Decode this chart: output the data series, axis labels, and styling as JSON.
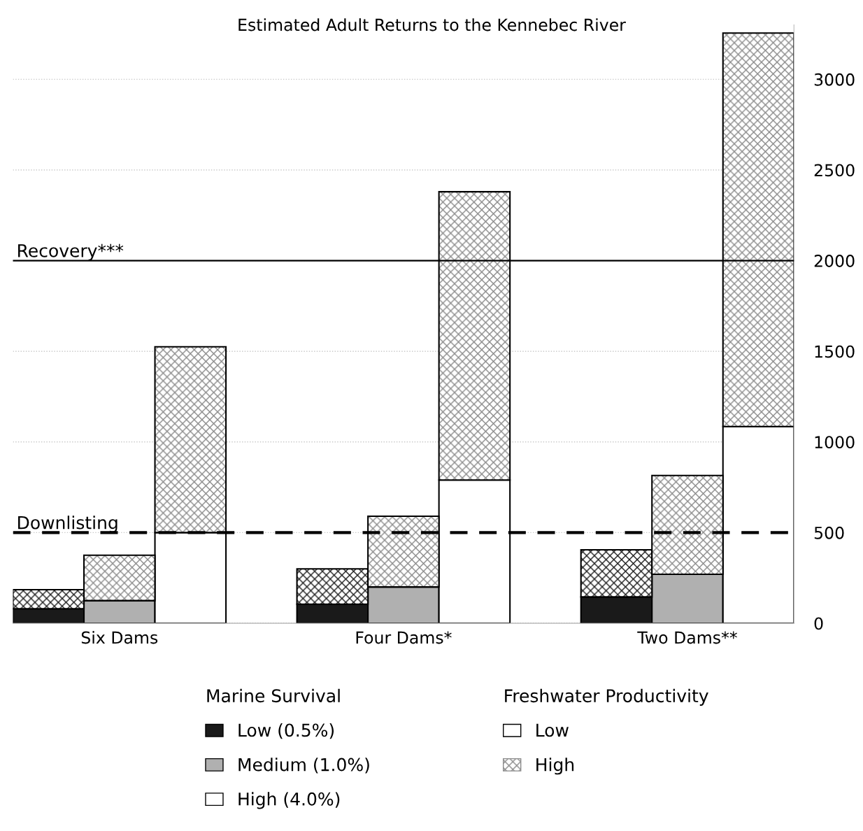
{
  "chart_data": {
    "type": "bar",
    "title": "Estimated Adult Returns to the Kennebec River",
    "categories": [
      null,
      "Six Dams",
      null,
      null,
      null,
      "Four Dams*",
      null,
      null,
      null,
      "Two Dams**",
      null
    ],
    "stacked": true,
    "series": [
      {
        "name": "Low",
        "colors": [
          "#1a1a1a",
          "#b0b0b0",
          "#ffffff",
          null,
          "#1a1a1a",
          "#b0b0b0",
          "#ffffff",
          null,
          "#1a1a1a",
          "#b0b0b0",
          "#ffffff"
        ],
        "values": [
          80,
          125,
          500,
          null,
          105,
          200,
          790,
          null,
          145,
          270,
          1085
        ]
      },
      {
        "name": "High",
        "colors": [
          "#1a1a1a",
          "#8a8a8a",
          "#8a8a8a",
          null,
          "#1a1a1a",
          "#8a8a8a",
          "#8a8a8a",
          null,
          "#1a1a1a",
          "#8a8a8a",
          "#8a8a8a"
        ],
        "values": [
          105,
          250,
          1025,
          null,
          195,
          390,
          1590,
          null,
          260,
          545,
          2170
        ]
      }
    ],
    "legend_title": "Freshwater Productivity",
    "legend": "bottom",
    "annotations": [
      "Marine Survival",
      "Low (0.5%)",
      "Medium (1.0%)",
      "High (4.0%)"
    ],
    "ylim": [
      0,
      3300
    ],
    "yticks": [
      0,
      500,
      1000,
      1500,
      2000,
      2500,
      3000
    ],
    "grid": "y",
    "ref_lines": [
      {
        "axis": "y",
        "value": 2000,
        "label": "Recovery***",
        "color": "#000000",
        "line_style": "solid"
      },
      {
        "axis": "y",
        "value": 500,
        "label": "Downlisting",
        "color": "#000000",
        "line_style": "dashed"
      }
    ]
  }
}
